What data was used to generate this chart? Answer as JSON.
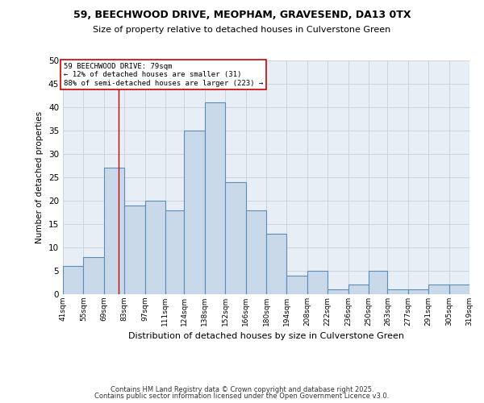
{
  "title1": "59, BEECHWOOD DRIVE, MEOPHAM, GRAVESEND, DA13 0TX",
  "title2": "Size of property relative to detached houses in Culverstone Green",
  "xlabel": "Distribution of detached houses by size in Culverstone Green",
  "ylabel": "Number of detached properties",
  "bin_edges": [
    41,
    55,
    69,
    83,
    97,
    111,
    124,
    138,
    152,
    166,
    180,
    194,
    208,
    222,
    236,
    250,
    263,
    277,
    291,
    305,
    319
  ],
  "bar_heights": [
    6,
    8,
    27,
    19,
    20,
    18,
    35,
    41,
    24,
    18,
    13,
    4,
    5,
    1,
    2,
    5,
    1,
    1,
    2,
    2
  ],
  "tick_labels": [
    "41sqm",
    "55sqm",
    "69sqm",
    "83sqm",
    "97sqm",
    "111sqm",
    "124sqm",
    "138sqm",
    "152sqm",
    "166sqm",
    "180sqm",
    "194sqm",
    "208sqm",
    "222sqm",
    "236sqm",
    "250sqm",
    "263sqm",
    "277sqm",
    "291sqm",
    "305sqm",
    "319sqm"
  ],
  "bar_color": "#c9d9ea",
  "bar_edge_color": "#5b8db8",
  "bar_linewidth": 0.8,
  "grid_color": "#c8d0dc",
  "bg_color": "#e8eef5",
  "property_line_x": 79,
  "property_line_color": "#cc0000",
  "annotation_text": "59 BEECHWOOD DRIVE: 79sqm\n← 12% of detached houses are smaller (31)\n88% of semi-detached houses are larger (223) →",
  "annotation_box_color": "white",
  "annotation_box_edge": "#cc0000",
  "ylim": [
    0,
    50
  ],
  "yticks": [
    0,
    5,
    10,
    15,
    20,
    25,
    30,
    35,
    40,
    45,
    50
  ],
  "footer1": "Contains HM Land Registry data © Crown copyright and database right 2025.",
  "footer2": "Contains public sector information licensed under the Open Government Licence v3.0."
}
